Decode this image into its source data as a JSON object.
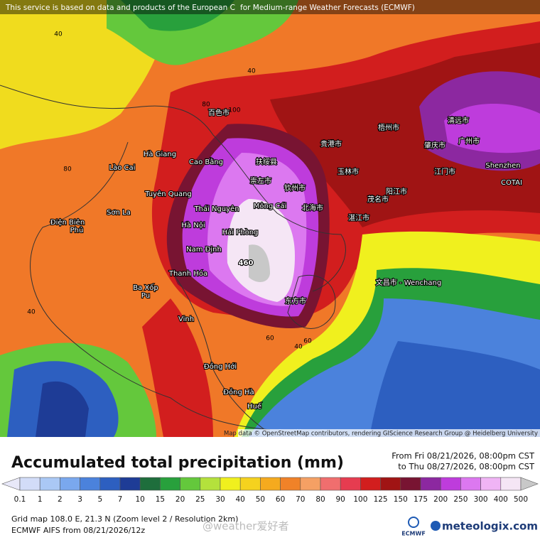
{
  "header": {
    "notice_left": "This service is based on data and products of the European C",
    "notice_right": "for Medium-range Weather Forecasts (ECMWF)"
  },
  "map": {
    "peak": "460",
    "places": [
      "Cao Bằng",
      "Hà Giang",
      "Lào Cai",
      "Tuyên Quang",
      "Thái Nguyên",
      "Hà Nội",
      "Hải Phòng",
      "Nam Định",
      "Thanh Hóa",
      "Vinh",
      "Đồng Hới",
      "Đồng Hà",
      "Huế",
      "Sơn La",
      "Điện Biên",
      "Phủ",
      "Mông Cái",
      "Shenzhen",
      "COTAI",
      "文昌市 - Wenchang",
      "扶绥县",
      "崇左市",
      "钦州市",
      "北海市",
      "湛江市",
      "茂名市",
      "阳江市",
      "广州市",
      "清远市",
      "东方市",
      "百色市",
      "贵港市",
      "玉林市",
      "梧州市",
      "肇庆市",
      "江门市",
      "Ba Xốp",
      "Pu"
    ],
    "contours": [
      "40",
      "80",
      "100",
      "60",
      "40",
      "60",
      "40",
      "40",
      "80"
    ],
    "attribution": "Map data © OpenStreetMap contributors, rendering GIScience Research Group @ Heidelberg University"
  },
  "legend": {
    "title": "Accumulated total precipitation (mm)",
    "from": "From Fri 08/21/2026, 08:00pm CST",
    "to": "to Thu 08/27/2026, 08:00pm CST",
    "values": [
      0.1,
      1,
      2,
      3,
      5,
      7,
      10,
      15,
      20,
      25,
      30,
      40,
      50,
      60,
      70,
      80,
      90,
      100,
      125,
      150,
      175,
      200,
      250,
      300,
      400,
      500
    ],
    "colors": [
      "#e8e8f8",
      "#d2dcf8",
      "#aac8f5",
      "#7aa8ee",
      "#4b82dc",
      "#2d5fc0",
      "#1e3c96",
      "#1e6e3c",
      "#28a03c",
      "#64c83c",
      "#b4e13c",
      "#f0f01e",
      "#f5d21e",
      "#f5aa1e",
      "#f08228",
      "#f5a064",
      "#f06e6e",
      "#e63c50",
      "#d21e1e",
      "#a01414",
      "#781432",
      "#8c28a0",
      "#be3cdc",
      "#dc78f0",
      "#f0b4f5",
      "#f5e6f5",
      "#c8c8c8"
    ]
  },
  "footer": {
    "grid": "Grid map 108.0 E, 21.3 N (Zoom level 2 / Resolution 2km)",
    "model": "ECMWF AIFS from  08/21/2026/12z",
    "watermark": "@weather爱好者",
    "ecmwf": "ECMWF",
    "brand": "meteologix.com"
  }
}
